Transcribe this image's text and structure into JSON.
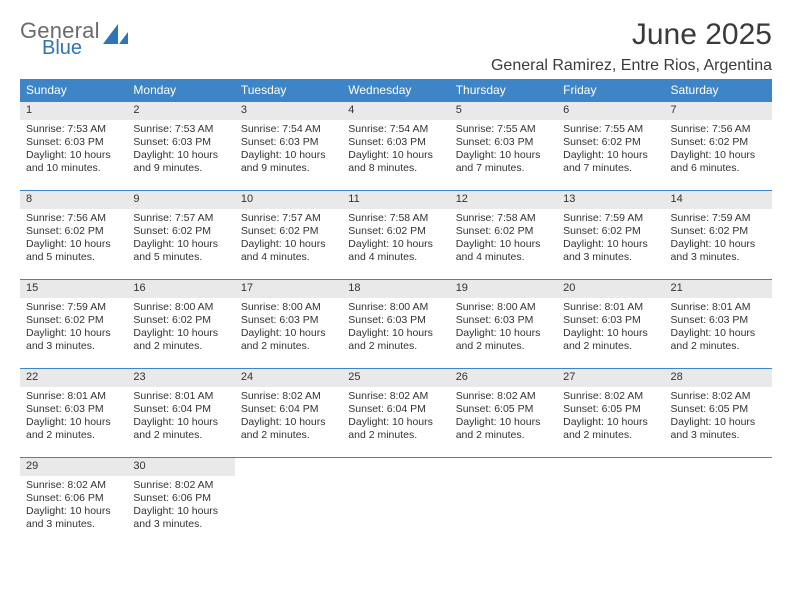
{
  "logo": {
    "general": "General",
    "blue": "Blue"
  },
  "header": {
    "month_title": "June 2025",
    "location": "General Ramirez, Entre Rios, Argentina"
  },
  "calendar": {
    "type": "table",
    "columns": [
      "Sunday",
      "Monday",
      "Tuesday",
      "Wednesday",
      "Thursday",
      "Friday",
      "Saturday"
    ],
    "header_bg": "#3d85c6",
    "header_fg": "#ffffff",
    "daynum_bg": "#e9e9e9",
    "row_border": "#3d85c6",
    "text_color": "#333333",
    "font_size_body": 10.5,
    "font_size_header": 12,
    "weeks": [
      [
        {
          "n": "1",
          "sunrise": "Sunrise: 7:53 AM",
          "sunset": "Sunset: 6:03 PM",
          "day1": "Daylight: 10 hours",
          "day2": "and 10 minutes."
        },
        {
          "n": "2",
          "sunrise": "Sunrise: 7:53 AM",
          "sunset": "Sunset: 6:03 PM",
          "day1": "Daylight: 10 hours",
          "day2": "and 9 minutes."
        },
        {
          "n": "3",
          "sunrise": "Sunrise: 7:54 AM",
          "sunset": "Sunset: 6:03 PM",
          "day1": "Daylight: 10 hours",
          "day2": "and 9 minutes."
        },
        {
          "n": "4",
          "sunrise": "Sunrise: 7:54 AM",
          "sunset": "Sunset: 6:03 PM",
          "day1": "Daylight: 10 hours",
          "day2": "and 8 minutes."
        },
        {
          "n": "5",
          "sunrise": "Sunrise: 7:55 AM",
          "sunset": "Sunset: 6:03 PM",
          "day1": "Daylight: 10 hours",
          "day2": "and 7 minutes."
        },
        {
          "n": "6",
          "sunrise": "Sunrise: 7:55 AM",
          "sunset": "Sunset: 6:02 PM",
          "day1": "Daylight: 10 hours",
          "day2": "and 7 minutes."
        },
        {
          "n": "7",
          "sunrise": "Sunrise: 7:56 AM",
          "sunset": "Sunset: 6:02 PM",
          "day1": "Daylight: 10 hours",
          "day2": "and 6 minutes."
        }
      ],
      [
        {
          "n": "8",
          "sunrise": "Sunrise: 7:56 AM",
          "sunset": "Sunset: 6:02 PM",
          "day1": "Daylight: 10 hours",
          "day2": "and 5 minutes."
        },
        {
          "n": "9",
          "sunrise": "Sunrise: 7:57 AM",
          "sunset": "Sunset: 6:02 PM",
          "day1": "Daylight: 10 hours",
          "day2": "and 5 minutes."
        },
        {
          "n": "10",
          "sunrise": "Sunrise: 7:57 AM",
          "sunset": "Sunset: 6:02 PM",
          "day1": "Daylight: 10 hours",
          "day2": "and 4 minutes."
        },
        {
          "n": "11",
          "sunrise": "Sunrise: 7:58 AM",
          "sunset": "Sunset: 6:02 PM",
          "day1": "Daylight: 10 hours",
          "day2": "and 4 minutes."
        },
        {
          "n": "12",
          "sunrise": "Sunrise: 7:58 AM",
          "sunset": "Sunset: 6:02 PM",
          "day1": "Daylight: 10 hours",
          "day2": "and 4 minutes."
        },
        {
          "n": "13",
          "sunrise": "Sunrise: 7:59 AM",
          "sunset": "Sunset: 6:02 PM",
          "day1": "Daylight: 10 hours",
          "day2": "and 3 minutes."
        },
        {
          "n": "14",
          "sunrise": "Sunrise: 7:59 AM",
          "sunset": "Sunset: 6:02 PM",
          "day1": "Daylight: 10 hours",
          "day2": "and 3 minutes."
        }
      ],
      [
        {
          "n": "15",
          "sunrise": "Sunrise: 7:59 AM",
          "sunset": "Sunset: 6:02 PM",
          "day1": "Daylight: 10 hours",
          "day2": "and 3 minutes."
        },
        {
          "n": "16",
          "sunrise": "Sunrise: 8:00 AM",
          "sunset": "Sunset: 6:02 PM",
          "day1": "Daylight: 10 hours",
          "day2": "and 2 minutes."
        },
        {
          "n": "17",
          "sunrise": "Sunrise: 8:00 AM",
          "sunset": "Sunset: 6:03 PM",
          "day1": "Daylight: 10 hours",
          "day2": "and 2 minutes."
        },
        {
          "n": "18",
          "sunrise": "Sunrise: 8:00 AM",
          "sunset": "Sunset: 6:03 PM",
          "day1": "Daylight: 10 hours",
          "day2": "and 2 minutes."
        },
        {
          "n": "19",
          "sunrise": "Sunrise: 8:00 AM",
          "sunset": "Sunset: 6:03 PM",
          "day1": "Daylight: 10 hours",
          "day2": "and 2 minutes."
        },
        {
          "n": "20",
          "sunrise": "Sunrise: 8:01 AM",
          "sunset": "Sunset: 6:03 PM",
          "day1": "Daylight: 10 hours",
          "day2": "and 2 minutes."
        },
        {
          "n": "21",
          "sunrise": "Sunrise: 8:01 AM",
          "sunset": "Sunset: 6:03 PM",
          "day1": "Daylight: 10 hours",
          "day2": "and 2 minutes."
        }
      ],
      [
        {
          "n": "22",
          "sunrise": "Sunrise: 8:01 AM",
          "sunset": "Sunset: 6:03 PM",
          "day1": "Daylight: 10 hours",
          "day2": "and 2 minutes."
        },
        {
          "n": "23",
          "sunrise": "Sunrise: 8:01 AM",
          "sunset": "Sunset: 6:04 PM",
          "day1": "Daylight: 10 hours",
          "day2": "and 2 minutes."
        },
        {
          "n": "24",
          "sunrise": "Sunrise: 8:02 AM",
          "sunset": "Sunset: 6:04 PM",
          "day1": "Daylight: 10 hours",
          "day2": "and 2 minutes."
        },
        {
          "n": "25",
          "sunrise": "Sunrise: 8:02 AM",
          "sunset": "Sunset: 6:04 PM",
          "day1": "Daylight: 10 hours",
          "day2": "and 2 minutes."
        },
        {
          "n": "26",
          "sunrise": "Sunrise: 8:02 AM",
          "sunset": "Sunset: 6:05 PM",
          "day1": "Daylight: 10 hours",
          "day2": "and 2 minutes."
        },
        {
          "n": "27",
          "sunrise": "Sunrise: 8:02 AM",
          "sunset": "Sunset: 6:05 PM",
          "day1": "Daylight: 10 hours",
          "day2": "and 2 minutes."
        },
        {
          "n": "28",
          "sunrise": "Sunrise: 8:02 AM",
          "sunset": "Sunset: 6:05 PM",
          "day1": "Daylight: 10 hours",
          "day2": "and 3 minutes."
        }
      ],
      [
        {
          "n": "29",
          "sunrise": "Sunrise: 8:02 AM",
          "sunset": "Sunset: 6:06 PM",
          "day1": "Daylight: 10 hours",
          "day2": "and 3 minutes."
        },
        {
          "n": "30",
          "sunrise": "Sunrise: 8:02 AM",
          "sunset": "Sunset: 6:06 PM",
          "day1": "Daylight: 10 hours",
          "day2": "and 3 minutes."
        },
        {
          "empty": true
        },
        {
          "empty": true
        },
        {
          "empty": true
        },
        {
          "empty": true
        },
        {
          "empty": true
        }
      ]
    ]
  }
}
